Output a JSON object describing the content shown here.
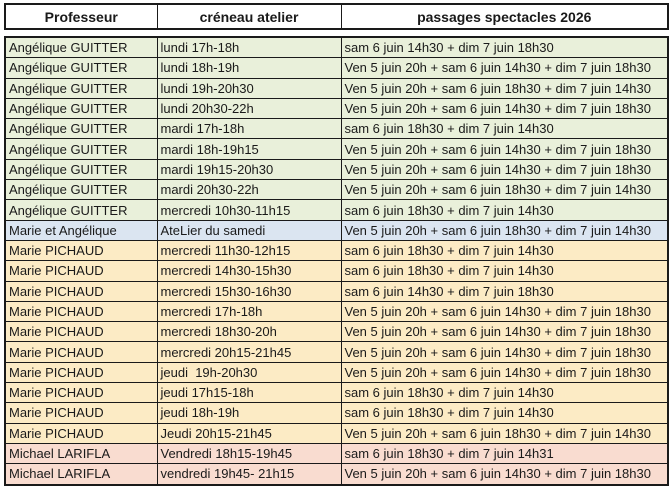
{
  "header": {
    "columns": [
      "Professeur",
      "créneau atelier",
      "passages spectacles 2026"
    ]
  },
  "colors": {
    "green": "#E9F0DA",
    "blue": "#DBE5F1",
    "yellow": "#FCEBC5",
    "pink": "#F9DCD0",
    "border": "#1A1A1A",
    "text": "#1A1A1A"
  },
  "rows": [
    {
      "professeur": "Angélique GUITTER",
      "creneau": "lundi 17h-18h",
      "passages": "sam 6 juin 14h30 + dim 7 juin 18h30",
      "color": "green"
    },
    {
      "professeur": "Angélique GUITTER",
      "creneau": "lundi 18h-19h",
      "passages": "Ven 5 juin 20h + sam 6 juin 14h30 + dim 7 juin 18h30",
      "color": "green"
    },
    {
      "professeur": "Angélique GUITTER",
      "creneau": "lundi 19h-20h30",
      "passages": "Ven 5 juin 20h + sam 6 juin 18h30 + dim 7 juin 14h30",
      "color": "green"
    },
    {
      "professeur": "Angélique GUITTER",
      "creneau": "lundi 20h30-22h",
      "passages": "Ven 5 juin 20h + sam 6 juin 14h30 + dim 7 juin 18h30",
      "color": "green"
    },
    {
      "professeur": "Angélique GUITTER",
      "creneau": "mardi 17h-18h",
      "passages": "sam 6 juin 18h30 + dim 7 juin 14h30",
      "color": "green"
    },
    {
      "professeur": "Angélique GUITTER",
      "creneau": "mardi 18h-19h15",
      "passages": "Ven 5 juin 20h + sam 6 juin 14h30 + dim 7 juin 18h30",
      "color": "green"
    },
    {
      "professeur": "Angélique GUITTER",
      "creneau": "mardi 19h15-20h30",
      "passages": "Ven 5 juin 20h + sam 6 juin 14h30 + dim 7 juin 18h30",
      "color": "green"
    },
    {
      "professeur": "Angélique GUITTER",
      "creneau": "mardi 20h30-22h",
      "passages": "Ven 5 juin 20h + sam 6 juin 18h30 + dim 7 juin 14h30",
      "color": "green"
    },
    {
      "professeur": "Angélique GUITTER",
      "creneau": "mercredi 10h30-11h15",
      "passages": "sam 6 juin 18h30 + dim 7 juin 14h30",
      "color": "green"
    },
    {
      "professeur": "Marie et Angélique",
      "creneau": "AteLier du samedi",
      "passages": "Ven 5 juin 20h + sam 6 juin 18h30 + dim 7 juin 14h30",
      "color": "blue"
    },
    {
      "professeur": "Marie PICHAUD",
      "creneau": "mercredi 11h30-12h15",
      "passages": "sam 6 juin 18h30 + dim 7 juin 14h30",
      "color": "yellow"
    },
    {
      "professeur": "Marie PICHAUD",
      "creneau": "mercredi 14h30-15h30",
      "passages": "sam 6 juin 18h30 + dim 7 juin 14h30",
      "color": "yellow"
    },
    {
      "professeur": "Marie PICHAUD",
      "creneau": "mercredi 15h30-16h30",
      "passages": "sam 6 juin 14h30 + dim 7 juin 18h30",
      "color": "yellow"
    },
    {
      "professeur": "Marie PICHAUD",
      "creneau": "mercredi 17h-18h",
      "passages": "Ven 5 juin 20h + sam 6 juin 14h30 + dim 7 juin 18h30",
      "color": "yellow"
    },
    {
      "professeur": "Marie PICHAUD",
      "creneau": "mercredi 18h30-20h",
      "passages": "Ven 5 juin 20h + sam 6 juin 14h30 + dim 7 juin 18h30",
      "color": "yellow"
    },
    {
      "professeur": "Marie PICHAUD",
      "creneau": "mercredi 20h15-21h45",
      "passages": "Ven 5 juin 20h + sam 6 juin 14h30 + dim 7 juin 18h30",
      "color": "yellow"
    },
    {
      "professeur": "Marie PICHAUD",
      "creneau": "jeudi  19h-20h30",
      "passages": "Ven 5 juin 20h + sam 6 juin 14h30 + dim 7 juin 18h30",
      "color": "yellow"
    },
    {
      "professeur": "Marie PICHAUD",
      "creneau": "jeudi 17h15-18h",
      "passages": "sam 6 juin 18h30 + dim 7 juin 14h30",
      "color": "yellow"
    },
    {
      "professeur": "Marie PICHAUD",
      "creneau": "jeudi 18h-19h",
      "passages": "sam 6 juin 18h30 + dim 7 juin 14h30",
      "color": "yellow"
    },
    {
      "professeur": "Marie PICHAUD",
      "creneau": "Jeudi 20h15-21h45",
      "passages": "Ven 5 juin 20h + sam 6 juin 18h30 + dim 7 juin 14h30",
      "color": "yellow"
    },
    {
      "professeur": "Michael LARIFLA",
      "creneau": "Vendredi 18h15-19h45",
      "passages": "sam 6 juin 18h30 + dim 7 juin 14h31",
      "color": "pink"
    },
    {
      "professeur": "Michael LARIFLA",
      "creneau": "vendredi 19h45- 21h15",
      "passages": "Ven 5 juin 20h + sam 6 juin 14h30 + dim 7 juin 18h30",
      "color": "pink"
    }
  ]
}
